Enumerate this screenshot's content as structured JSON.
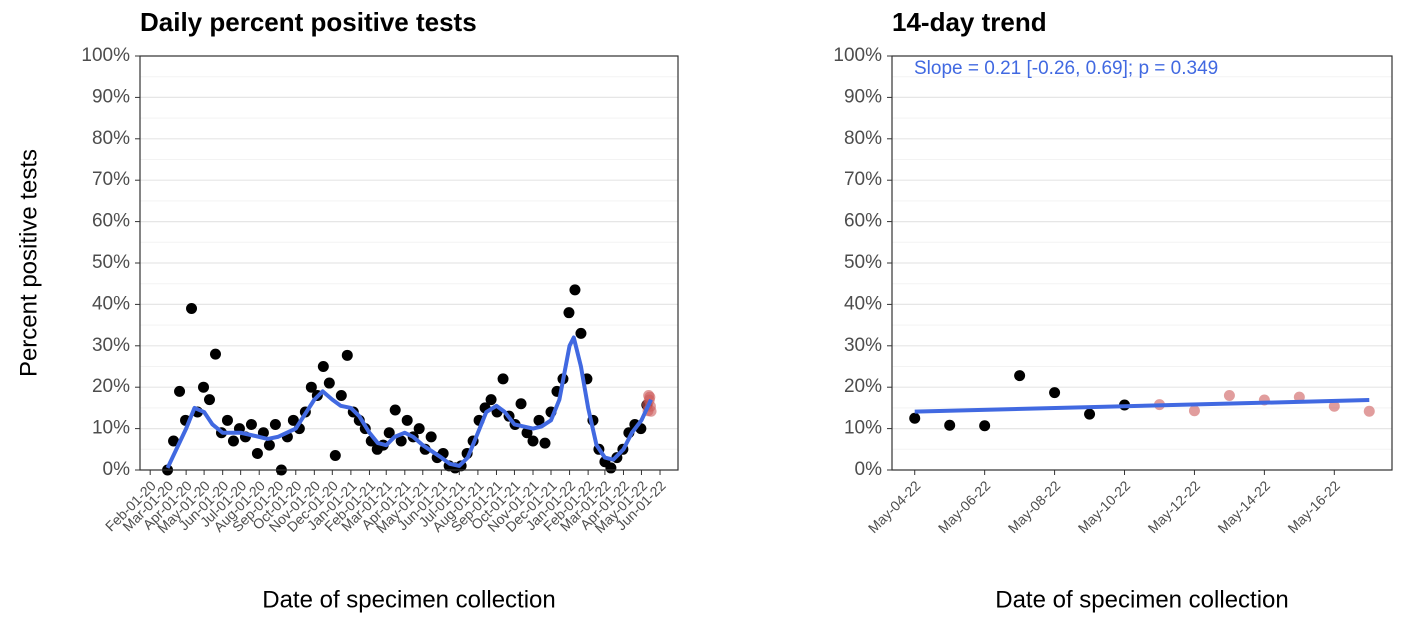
{
  "chart_data": [
    {
      "type": "scatter",
      "title": "Daily percent positive tests",
      "xlabel": "Date of specimen collection",
      "ylabel": "Percent positive tests",
      "xlim": [
        "2020-01-15",
        "2022-07-01"
      ],
      "xticks": [
        {
          "value": "2020-02-01",
          "label": "Feb-01-20"
        },
        {
          "value": "2020-03-01",
          "label": "Mar-01-20"
        },
        {
          "value": "2020-04-01",
          "label": "Apr-01-20"
        },
        {
          "value": "2020-05-01",
          "label": "May-01-20"
        },
        {
          "value": "2020-06-01",
          "label": "Jun-01-20"
        },
        {
          "value": "2020-07-01",
          "label": "Jul-01-20"
        },
        {
          "value": "2020-08-01",
          "label": "Aug-01-20"
        },
        {
          "value": "2020-09-01",
          "label": "Sep-01-20"
        },
        {
          "value": "2020-10-01",
          "label": "Oct-01-20"
        },
        {
          "value": "2020-11-01",
          "label": "Nov-01-20"
        },
        {
          "value": "2020-12-01",
          "label": "Dec-01-20"
        },
        {
          "value": "2021-01-01",
          "label": "Jan-01-21"
        },
        {
          "value": "2021-02-01",
          "label": "Feb-01-21"
        },
        {
          "value": "2021-03-01",
          "label": "Mar-01-21"
        },
        {
          "value": "2021-04-01",
          "label": "Apr-01-21"
        },
        {
          "value": "2021-05-01",
          "label": "May-01-21"
        },
        {
          "value": "2021-06-01",
          "label": "Jun-01-21"
        },
        {
          "value": "2021-07-01",
          "label": "Jul-01-21"
        },
        {
          "value": "2021-08-01",
          "label": "Aug-01-21"
        },
        {
          "value": "2021-09-01",
          "label": "Sep-01-21"
        },
        {
          "value": "2021-10-01",
          "label": "Oct-01-21"
        },
        {
          "value": "2021-11-01",
          "label": "Nov-01-21"
        },
        {
          "value": "2021-12-01",
          "label": "Dec-01-21"
        },
        {
          "value": "2022-01-01",
          "label": "Jan-01-22"
        },
        {
          "value": "2022-02-01",
          "label": "Feb-01-22"
        },
        {
          "value": "2022-03-01",
          "label": "Mar-01-22"
        },
        {
          "value": "2022-04-01",
          "label": "Apr-01-22"
        },
        {
          "value": "2022-05-01",
          "label": "May-01-22"
        },
        {
          "value": "2022-06-01",
          "label": "Jun-01-22"
        }
      ],
      "ylim": [
        0,
        100
      ],
      "yticks": [
        {
          "value": 0,
          "label": "0%"
        },
        {
          "value": 10,
          "label": "10%"
        },
        {
          "value": 20,
          "label": "20%"
        },
        {
          "value": 30,
          "label": "30%"
        },
        {
          "value": 40,
          "label": "40%"
        },
        {
          "value": 50,
          "label": "50%"
        },
        {
          "value": 60,
          "label": "60%"
        },
        {
          "value": 70,
          "label": "70%"
        },
        {
          "value": 80,
          "label": "80%"
        },
        {
          "value": 90,
          "label": "90%"
        },
        {
          "value": 100,
          "label": "100%"
        }
      ],
      "grid": true,
      "series": [
        {
          "kind": "points",
          "color": "#000000",
          "x": [
            "2020-03-01",
            "2020-03-11",
            "2020-03-21",
            "2020-03-31",
            "2020-04-10",
            "2020-04-20",
            "2020-04-30",
            "2020-05-10",
            "2020-05-20",
            "2020-05-30",
            "2020-06-09",
            "2020-06-19",
            "2020-06-29",
            "2020-07-09",
            "2020-07-19",
            "2020-07-29",
            "2020-08-08",
            "2020-08-18",
            "2020-08-28",
            "2020-09-07",
            "2020-09-17",
            "2020-09-27",
            "2020-10-07",
            "2020-10-17",
            "2020-10-27",
            "2020-11-06",
            "2020-11-16",
            "2020-11-26",
            "2020-12-06",
            "2020-12-16",
            "2020-12-26",
            "2021-01-05",
            "2021-01-15",
            "2021-01-25",
            "2021-02-04",
            "2021-02-14",
            "2021-02-24",
            "2021-03-06",
            "2021-03-16",
            "2021-03-26",
            "2021-04-05",
            "2021-04-15",
            "2021-04-25",
            "2021-05-05",
            "2021-05-15",
            "2021-05-25",
            "2021-06-04",
            "2021-06-14",
            "2021-06-24",
            "2021-07-04",
            "2021-07-14",
            "2021-07-24",
            "2021-08-03",
            "2021-08-13",
            "2021-08-23",
            "2021-09-02",
            "2021-09-12",
            "2021-09-22",
            "2021-10-02",
            "2021-10-12",
            "2021-10-22",
            "2021-11-01",
            "2021-11-11",
            "2021-11-21",
            "2021-12-01",
            "2021-12-11",
            "2021-12-21",
            "2021-12-31",
            "2022-01-10",
            "2022-01-20",
            "2022-01-30",
            "2022-02-09",
            "2022-02-19",
            "2022-03-01",
            "2022-03-11",
            "2022-03-21",
            "2022-03-31",
            "2022-04-10",
            "2022-04-20",
            "2022-04-30",
            "2022-05-10"
          ],
          "values": [
            0,
            7,
            19,
            12,
            39,
            14,
            20,
            17,
            28,
            9,
            12,
            7,
            10,
            8,
            11,
            4,
            9,
            6,
            11,
            0,
            8,
            12,
            10,
            14,
            20,
            18,
            25,
            21,
            3.5,
            18,
            27.7,
            14,
            12,
            10,
            7,
            5,
            6,
            9,
            14.5,
            7,
            12,
            8,
            10,
            5,
            8,
            3,
            4,
            1,
            0.5,
            1,
            4,
            7,
            12,
            15,
            17,
            14,
            22,
            13,
            11,
            16,
            9,
            7,
            12,
            6.5,
            14,
            19,
            22,
            38,
            43.5,
            33,
            22,
            12,
            5,
            2,
            0.5,
            3,
            5,
            9,
            11,
            10,
            15.7
          ]
        },
        {
          "kind": "points",
          "color": "#cd5c5c",
          "x": [
            "2022-05-11",
            "2022-05-12",
            "2022-05-13",
            "2022-05-14",
            "2022-05-15",
            "2022-05-16",
            "2022-05-17"
          ],
          "values": [
            15.8,
            14.3,
            18.0,
            16.9,
            17.6,
            15.4,
            14.2
          ]
        },
        {
          "kind": "line",
          "color": "#4169e1",
          "x": [
            "2020-03-01",
            "2020-04-01",
            "2020-04-15",
            "2020-05-01",
            "2020-05-15",
            "2020-06-01",
            "2020-07-01",
            "2020-08-01",
            "2020-08-15",
            "2020-09-01",
            "2020-10-01",
            "2020-11-01",
            "2020-11-15",
            "2020-12-01",
            "2020-12-15",
            "2021-01-01",
            "2021-01-15",
            "2021-02-01",
            "2021-02-15",
            "2021-03-01",
            "2021-03-15",
            "2021-04-01",
            "2021-04-15",
            "2021-05-01",
            "2021-06-01",
            "2021-06-15",
            "2021-07-01",
            "2021-07-15",
            "2021-08-01",
            "2021-08-15",
            "2021-09-01",
            "2021-09-15",
            "2021-10-01",
            "2021-11-01",
            "2021-11-15",
            "2021-12-01",
            "2021-12-15",
            "2022-01-01",
            "2022-01-08",
            "2022-01-20",
            "2022-02-01",
            "2022-02-15",
            "2022-03-01",
            "2022-03-15",
            "2022-04-01",
            "2022-04-15",
            "2022-05-01",
            "2022-05-17"
          ],
          "values": [
            0.5,
            10,
            15,
            14,
            11,
            9,
            9,
            8,
            7.5,
            8,
            10,
            17,
            19,
            17,
            15.5,
            15,
            13,
            9,
            6.5,
            6,
            8,
            9,
            8,
            6,
            3,
            1.5,
            1,
            3,
            9,
            14,
            15.5,
            14,
            11,
            10,
            10.5,
            12,
            17,
            30,
            32,
            25,
            15,
            6,
            3,
            2.5,
            5,
            9,
            12,
            17
          ]
        }
      ]
    },
    {
      "type": "scatter",
      "title": "14-day trend",
      "xlabel": "Date of specimen collection",
      "annotation": "Slope = 0.21 [-0.26, 0.69]; p = 0.349",
      "annotation_color": "#4169e1",
      "xlim": [
        "2022-05-03T08:24Z",
        "2022-05-17T15:36Z"
      ],
      "xticks": [
        {
          "value": "2022-05-04",
          "label": "May-04-22"
        },
        {
          "value": "2022-05-06",
          "label": "May-06-22"
        },
        {
          "value": "2022-05-08",
          "label": "May-08-22"
        },
        {
          "value": "2022-05-10",
          "label": "May-10-22"
        },
        {
          "value": "2022-05-12",
          "label": "May-12-22"
        },
        {
          "value": "2022-05-14",
          "label": "May-14-22"
        },
        {
          "value": "2022-05-16",
          "label": "May-16-22"
        }
      ],
      "ylim": [
        0,
        100
      ],
      "yticks": [
        {
          "value": 0,
          "label": "0%"
        },
        {
          "value": 10,
          "label": "10%"
        },
        {
          "value": 20,
          "label": "20%"
        },
        {
          "value": 30,
          "label": "30%"
        },
        {
          "value": 40,
          "label": "40%"
        },
        {
          "value": 50,
          "label": "50%"
        },
        {
          "value": 60,
          "label": "60%"
        },
        {
          "value": 70,
          "label": "70%"
        },
        {
          "value": 80,
          "label": "80%"
        },
        {
          "value": 90,
          "label": "90%"
        },
        {
          "value": 100,
          "label": "100%"
        }
      ],
      "grid": true,
      "series": [
        {
          "kind": "points",
          "color": "#000000",
          "x": [
            "2022-05-04",
            "2022-05-05",
            "2022-05-06",
            "2022-05-07",
            "2022-05-08",
            "2022-05-09",
            "2022-05-10"
          ],
          "values": [
            12.5,
            10.8,
            10.7,
            22.8,
            18.7,
            13.5,
            15.7
          ]
        },
        {
          "kind": "points",
          "color": "#cd5c5c",
          "x": [
            "2022-05-11",
            "2022-05-12",
            "2022-05-13",
            "2022-05-14",
            "2022-05-15",
            "2022-05-16",
            "2022-05-17"
          ],
          "values": [
            15.8,
            14.3,
            18.0,
            16.9,
            17.6,
            15.4,
            14.2
          ]
        },
        {
          "kind": "line",
          "color": "#4169e1",
          "x": [
            "2022-05-04",
            "2022-05-17"
          ],
          "values": [
            14.1,
            16.9
          ]
        }
      ]
    }
  ]
}
